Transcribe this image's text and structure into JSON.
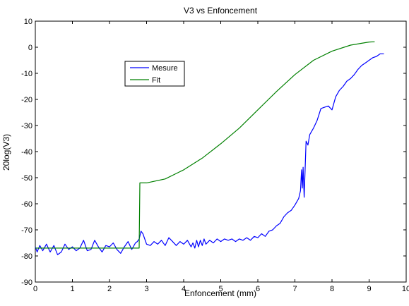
{
  "chart_data": {
    "type": "line",
    "title": "V3 vs Enfoncement",
    "xlabel": "Enfoncement (mm)",
    "ylabel": "20log(V3)",
    "xlim": [
      0,
      10
    ],
    "ylim": [
      -90,
      10
    ],
    "xticks": [
      0,
      1,
      2,
      3,
      4,
      5,
      6,
      7,
      8,
      9,
      10
    ],
    "yticks": [
      10,
      0,
      -10,
      -20,
      -30,
      -40,
      -50,
      -60,
      -70,
      -80,
      -90
    ],
    "grid": false,
    "legend": {
      "placement": "upper-left-inside",
      "entries": [
        "Mesure",
        "Fit"
      ]
    },
    "series": [
      {
        "name": "Mesure",
        "color": "#0000ff",
        "points": [
          [
            0.0,
            -76.5
          ],
          [
            0.05,
            -78.5
          ],
          [
            0.12,
            -76.0
          ],
          [
            0.2,
            -78.0
          ],
          [
            0.3,
            -75.5
          ],
          [
            0.4,
            -78.5
          ],
          [
            0.5,
            -76.0
          ],
          [
            0.6,
            -79.5
          ],
          [
            0.7,
            -78.5
          ],
          [
            0.8,
            -75.5
          ],
          [
            0.9,
            -77.5
          ],
          [
            1.0,
            -76.5
          ],
          [
            1.1,
            -78.0
          ],
          [
            1.2,
            -77.0
          ],
          [
            1.3,
            -74.0
          ],
          [
            1.4,
            -78.0
          ],
          [
            1.5,
            -77.5
          ],
          [
            1.6,
            -74.0
          ],
          [
            1.7,
            -76.5
          ],
          [
            1.8,
            -78.5
          ],
          [
            1.9,
            -76.0
          ],
          [
            2.0,
            -76.5
          ],
          [
            2.1,
            -75.0
          ],
          [
            2.2,
            -77.5
          ],
          [
            2.3,
            -79.0
          ],
          [
            2.4,
            -76.5
          ],
          [
            2.5,
            -74.5
          ],
          [
            2.6,
            -77.5
          ],
          [
            2.7,
            -75.0
          ],
          [
            2.75,
            -74.5
          ],
          [
            2.8,
            -73.5
          ],
          [
            2.85,
            -70.5
          ],
          [
            2.9,
            -71.5
          ],
          [
            3.0,
            -75.5
          ],
          [
            3.1,
            -76.0
          ],
          [
            3.2,
            -74.5
          ],
          [
            3.3,
            -75.5
          ],
          [
            3.4,
            -74.0
          ],
          [
            3.5,
            -76.0
          ],
          [
            3.6,
            -73.0
          ],
          [
            3.7,
            -74.5
          ],
          [
            3.8,
            -76.0
          ],
          [
            3.9,
            -74.5
          ],
          [
            4.0,
            -75.5
          ],
          [
            4.1,
            -74.0
          ],
          [
            4.2,
            -76.5
          ],
          [
            4.25,
            -75.0
          ],
          [
            4.3,
            -77.0
          ],
          [
            4.35,
            -74.0
          ],
          [
            4.4,
            -76.5
          ],
          [
            4.45,
            -74.0
          ],
          [
            4.5,
            -76.0
          ],
          [
            4.55,
            -73.5
          ],
          [
            4.6,
            -75.5
          ],
          [
            4.7,
            -74.0
          ],
          [
            4.8,
            -75.0
          ],
          [
            4.9,
            -73.5
          ],
          [
            5.0,
            -74.5
          ],
          [
            5.1,
            -73.5
          ],
          [
            5.2,
            -74.0
          ],
          [
            5.3,
            -73.5
          ],
          [
            5.4,
            -74.5
          ],
          [
            5.5,
            -73.5
          ],
          [
            5.6,
            -74.0
          ],
          [
            5.7,
            -73.0
          ],
          [
            5.8,
            -74.0
          ],
          [
            5.9,
            -72.5
          ],
          [
            6.0,
            -73.0
          ],
          [
            6.1,
            -71.5
          ],
          [
            6.2,
            -72.5
          ],
          [
            6.3,
            -70.5
          ],
          [
            6.4,
            -70.0
          ],
          [
            6.5,
            -68.5
          ],
          [
            6.6,
            -67.5
          ],
          [
            6.7,
            -65.0
          ],
          [
            6.8,
            -63.5
          ],
          [
            6.9,
            -62.5
          ],
          [
            7.0,
            -60.5
          ],
          [
            7.1,
            -58.0
          ],
          [
            7.15,
            -55.0
          ],
          [
            7.18,
            -47.0
          ],
          [
            7.2,
            -54.0
          ],
          [
            7.22,
            -46.0
          ],
          [
            7.25,
            -57.5
          ],
          [
            7.3,
            -36.0
          ],
          [
            7.35,
            -37.5
          ],
          [
            7.4,
            -33.5
          ],
          [
            7.5,
            -31.0
          ],
          [
            7.6,
            -28.0
          ],
          [
            7.7,
            -23.5
          ],
          [
            7.8,
            -23.0
          ],
          [
            7.9,
            -22.5
          ],
          [
            8.0,
            -24.0
          ],
          [
            8.1,
            -19.0
          ],
          [
            8.2,
            -16.5
          ],
          [
            8.3,
            -15.0
          ],
          [
            8.4,
            -13.0
          ],
          [
            8.5,
            -12.0
          ],
          [
            8.6,
            -10.5
          ],
          [
            8.7,
            -8.5
          ],
          [
            8.8,
            -7.0
          ],
          [
            8.9,
            -6.0
          ],
          [
            9.0,
            -5.0
          ],
          [
            9.1,
            -4.0
          ],
          [
            9.2,
            -3.5
          ],
          [
            9.3,
            -2.5
          ],
          [
            9.4,
            -2.5
          ]
        ]
      },
      {
        "name": "Fit",
        "color": "#008000",
        "points": [
          [
            0.0,
            -77.0
          ],
          [
            2.8,
            -77.0
          ],
          [
            2.82,
            -52.0
          ],
          [
            3.0,
            -52.0
          ],
          [
            3.5,
            -50.5
          ],
          [
            4.0,
            -47.0
          ],
          [
            4.5,
            -42.5
          ],
          [
            5.0,
            -37.0
          ],
          [
            5.5,
            -31.0
          ],
          [
            6.0,
            -24.0
          ],
          [
            6.5,
            -17.0
          ],
          [
            7.0,
            -10.5
          ],
          [
            7.5,
            -5.0
          ],
          [
            8.0,
            -1.5
          ],
          [
            8.5,
            0.8
          ],
          [
            9.0,
            2.0
          ],
          [
            9.15,
            2.1
          ]
        ]
      }
    ]
  }
}
